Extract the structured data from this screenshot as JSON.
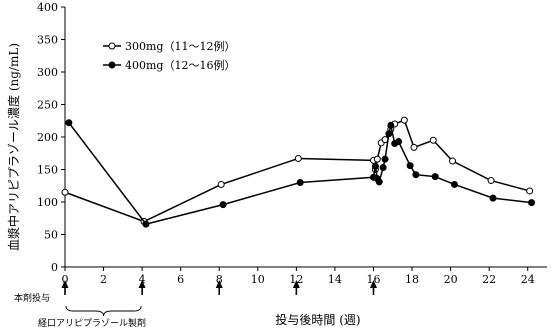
{
  "chart_data": {
    "type": "line",
    "ylabel": "血漿中アリピプラゾール濃度 (ng/mL)",
    "xlabel": "投与後時間 (週)",
    "xlim": [
      0,
      25
    ],
    "ylim": [
      0,
      400
    ],
    "x_ticks": [
      0,
      2,
      4,
      6,
      8,
      10,
      12,
      14,
      16,
      18,
      20,
      22,
      24
    ],
    "y_ticks": [
      0,
      50,
      100,
      150,
      200,
      250,
      300,
      350,
      400
    ],
    "grid": false,
    "legend_position": "top-left",
    "series": [
      {
        "name": "300mg（11～12例）",
        "marker": "open-circle",
        "color": "#000000",
        "points": [
          {
            "x": 0,
            "y": 115
          },
          {
            "x": 4.1,
            "y": 70
          },
          {
            "x": 8.1,
            "y": 127
          },
          {
            "x": 12.1,
            "y": 167
          },
          {
            "x": 16.0,
            "y": 164
          },
          {
            "x": 16.1,
            "y": 150
          },
          {
            "x": 16.2,
            "y": 166
          },
          {
            "x": 16.4,
            "y": 191
          },
          {
            "x": 16.6,
            "y": 196
          },
          {
            "x": 16.9,
            "y": 212
          },
          {
            "x": 17.1,
            "y": 220
          },
          {
            "x": 17.6,
            "y": 226
          },
          {
            "x": 18.1,
            "y": 184
          },
          {
            "x": 19.1,
            "y": 195
          },
          {
            "x": 20.1,
            "y": 163
          },
          {
            "x": 22.1,
            "y": 133
          },
          {
            "x": 24.1,
            "y": 117
          }
        ]
      },
      {
        "name": "400mg（12～16例）",
        "marker": "filled-circle",
        "color": "#000000",
        "points": [
          {
            "x": 0.2,
            "y": 222
          },
          {
            "x": 4.2,
            "y": 66
          },
          {
            "x": 8.2,
            "y": 96
          },
          {
            "x": 12.2,
            "y": 130
          },
          {
            "x": 16.0,
            "y": 138
          },
          {
            "x": 16.1,
            "y": 155
          },
          {
            "x": 16.2,
            "y": 136
          },
          {
            "x": 16.3,
            "y": 131
          },
          {
            "x": 16.5,
            "y": 153
          },
          {
            "x": 16.6,
            "y": 166
          },
          {
            "x": 16.8,
            "y": 205
          },
          {
            "x": 16.9,
            "y": 218
          },
          {
            "x": 17.1,
            "y": 190
          },
          {
            "x": 17.3,
            "y": 193
          },
          {
            "x": 17.9,
            "y": 156
          },
          {
            "x": 18.2,
            "y": 142
          },
          {
            "x": 19.2,
            "y": 139
          },
          {
            "x": 20.2,
            "y": 127
          },
          {
            "x": 22.2,
            "y": 106
          },
          {
            "x": 24.2,
            "y": 99
          }
        ]
      }
    ],
    "dosing_arrows_weeks": [
      0,
      4,
      8,
      12,
      16
    ],
    "annotations": {
      "dose_label": "本剤投与",
      "oral_label": "経口アリピプラゾール製剤"
    }
  }
}
